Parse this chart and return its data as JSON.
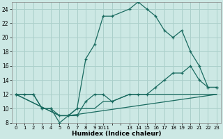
{
  "xlabel": "Humidex (Indice chaleur)",
  "background_color": "#cce8e4",
  "grid_color": "#aacfca",
  "line_color": "#1a6b60",
  "xlim": [
    -0.5,
    23.5
  ],
  "ylim": [
    8,
    25
  ],
  "yticks": [
    8,
    10,
    12,
    14,
    16,
    18,
    20,
    22,
    24
  ],
  "xtick_labels": [
    "0",
    "1",
    "2",
    "3",
    "4",
    "5",
    "6",
    "7",
    "8",
    "9",
    "1011",
    "",
    "13",
    "14",
    "15",
    "16",
    "17",
    "18",
    "19",
    "20",
    "21",
    "22",
    "23"
  ],
  "line1_x": [
    0,
    1,
    2,
    3,
    4,
    5,
    6,
    7,
    8,
    9,
    10,
    11,
    13,
    14,
    15,
    16,
    17,
    18,
    19,
    20,
    21,
    22,
    23
  ],
  "line1_y": [
    12,
    12,
    12,
    10,
    10,
    9,
    9,
    10,
    17,
    19,
    23,
    23,
    24,
    25,
    24,
    23,
    21,
    20,
    21,
    18,
    16,
    13,
    13
  ],
  "line2_x": [
    0,
    2,
    3,
    4,
    5,
    6,
    7,
    8,
    9,
    10,
    11,
    13,
    14,
    15,
    16,
    17,
    18,
    19,
    20,
    21,
    22,
    23
  ],
  "line2_y": [
    12,
    12,
    10,
    10,
    8,
    9,
    9,
    11,
    12,
    12,
    11,
    12,
    12,
    12,
    13,
    14,
    15,
    15,
    16,
    14,
    13,
    13
  ],
  "line3_x": [
    0,
    5,
    6,
    23
  ],
  "line3_y": [
    12,
    9,
    9,
    12
  ],
  "line4_x": [
    0,
    5,
    6,
    7,
    8,
    9,
    10,
    11,
    13,
    14,
    15,
    16,
    17,
    18,
    19,
    20,
    21,
    22,
    23
  ],
  "line4_y": [
    12,
    9,
    9,
    10,
    10,
    10,
    11,
    11,
    12,
    12,
    12,
    12,
    12,
    12,
    12,
    12,
    12,
    12,
    12
  ]
}
